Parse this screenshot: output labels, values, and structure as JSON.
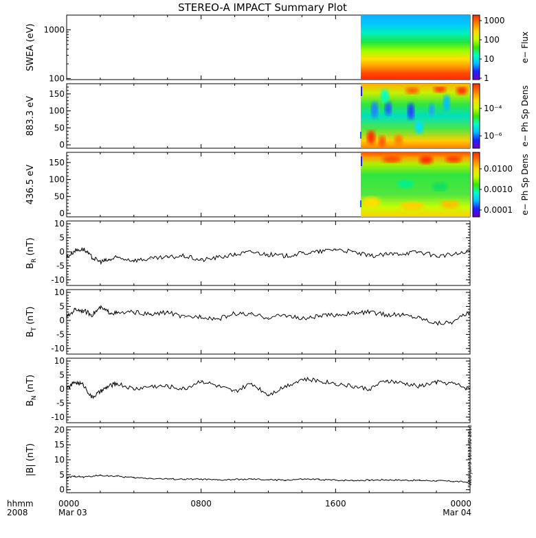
{
  "title": "STEREO-A IMPACT Summary Plot",
  "time_axis": {
    "row_label_top": "hhmm",
    "row_label_bottom": "2008",
    "ticks": [
      {
        "hour": 0,
        "top": "0000",
        "bottom": "Mar 03"
      },
      {
        "hour": 8,
        "top": "0800",
        "bottom": ""
      },
      {
        "hour": 16,
        "top": "1600",
        "bottom": ""
      },
      {
        "hour": 24,
        "top": "0000",
        "bottom": "Mar 04"
      }
    ]
  },
  "timestamp_text": "Wed Jun  9 16:33:31 2010",
  "colorbars": [
    {
      "label": "e− Flux",
      "scale": "log",
      "range": [
        1,
        1000
      ],
      "ticks": [
        "1000",
        "100",
        "10",
        "1"
      ]
    },
    {
      "label": "e− Ph Sp Dens",
      "scale": "log",
      "ticks": [
        "10⁻⁴",
        "10⁻⁶"
      ]
    },
    {
      "label": "e− Ph Sp Dens",
      "scale": "log",
      "range": [
        0.0001,
        0.03
      ],
      "ticks": [
        "0.0100",
        "0.0010",
        "0.0001"
      ]
    }
  ],
  "colormap": [
    "#6a00c8",
    "#1f1fff",
    "#00bfff",
    "#00ffc8",
    "#3ce600",
    "#c8ff00",
    "#ffd700",
    "#ff7f00",
    "#ff2a00"
  ],
  "chart_data": [
    {
      "type": "heatmap",
      "panel": "swea",
      "ylabel": "SWEA (eV)",
      "yscale": "log",
      "ylim": [
        95,
        2000
      ],
      "yticks": [
        "1000",
        "100"
      ],
      "xlim": [
        0,
        24
      ],
      "data_start_hour": 17.5,
      "energy_rows_ev": [
        100,
        150,
        250,
        400,
        650,
        1000,
        1500,
        2000
      ],
      "flux_by_energy": [
        1000,
        400,
        120,
        40,
        15,
        6,
        3,
        2
      ]
    },
    {
      "type": "heatmap",
      "panel": "pad_883",
      "ylabel": "883.3 eV",
      "ylim": [
        -10,
        180
      ],
      "yticks": [
        "150",
        "100",
        "50",
        "0"
      ],
      "xlim": [
        0,
        24
      ],
      "data_start_hour": 17.5
    },
    {
      "type": "heatmap",
      "panel": "pad_436",
      "ylabel": "436.5 eV",
      "ylim": [
        -10,
        180
      ],
      "yticks": [
        "150",
        "100",
        "50",
        "0"
      ],
      "xlim": [
        0,
        24
      ],
      "data_start_hour": 17.5
    },
    {
      "type": "line",
      "panel": "br",
      "ylabel": "B",
      "ylabel_sub": "R",
      "ylabel_unit": " (nT)",
      "ylim": [
        -12,
        11
      ],
      "yticks": [
        "10",
        "5",
        "0",
        "-5",
        "-10"
      ],
      "x": [
        0,
        0.5,
        1,
        1.5,
        2,
        2.5,
        3,
        4,
        5,
        6,
        7,
        8,
        9,
        10,
        11,
        12,
        13,
        14,
        15,
        16,
        17,
        18,
        19,
        20,
        21,
        22,
        23,
        24
      ],
      "y": [
        -2,
        0.5,
        1,
        -2,
        -3.5,
        -3,
        -2,
        -3,
        -2.5,
        -2,
        -1.5,
        -3,
        -2,
        -1,
        0,
        -1,
        -1.5,
        -0.5,
        0,
        1,
        0,
        -1.5,
        -1,
        -0.5,
        0,
        -1.5,
        -1,
        0
      ]
    },
    {
      "type": "line",
      "panel": "bt",
      "ylabel": "B",
      "ylabel_sub": "T",
      "ylabel_unit": " (nT)",
      "ylim": [
        -12,
        11
      ],
      "yticks": [
        "10",
        "5",
        "0",
        "-5",
        "-10"
      ],
      "x": [
        0,
        0.5,
        1,
        1.5,
        2,
        2.5,
        3,
        4,
        5,
        6,
        7,
        8,
        9,
        10,
        11,
        12,
        13,
        14,
        15,
        16,
        17,
        18,
        19,
        20,
        21,
        22,
        23,
        24
      ],
      "y": [
        1,
        4,
        3.5,
        2,
        4.5,
        3,
        2.5,
        3,
        2,
        3,
        1,
        1.5,
        0.5,
        2.5,
        2,
        1,
        2,
        0.5,
        1.5,
        2,
        2.5,
        3,
        2,
        2,
        1,
        -1,
        -0.5,
        3
      ]
    },
    {
      "type": "line",
      "panel": "bn",
      "ylabel": "B",
      "ylabel_sub": "N",
      "ylabel_unit": " (nT)",
      "ylim": [
        -12,
        11
      ],
      "yticks": [
        "10",
        "5",
        "0",
        "-5",
        "-10"
      ],
      "x": [
        0,
        0.5,
        1,
        1.5,
        2,
        2.5,
        3,
        4,
        5,
        6,
        7,
        8,
        9,
        10,
        11,
        12,
        13,
        14,
        15,
        16,
        17,
        18,
        19,
        20,
        21,
        22,
        23,
        24
      ],
      "y": [
        0,
        2.5,
        1.5,
        -3,
        -1,
        1,
        2,
        0,
        1,
        1,
        0,
        3,
        1,
        -1,
        2,
        -2,
        1,
        3.5,
        3,
        2,
        1,
        0,
        3,
        2,
        1,
        2.5,
        2,
        0
      ]
    },
    {
      "type": "line",
      "panel": "bmag",
      "ylabel": "|B| (nT)",
      "ylim": [
        -1,
        21
      ],
      "yticks": [
        "20",
        "15",
        "10",
        "5",
        "0"
      ],
      "x": [
        0,
        0.5,
        1,
        2,
        3,
        4,
        5,
        6,
        7,
        8,
        9,
        10,
        11,
        12,
        13,
        14,
        15,
        16,
        17,
        18,
        19,
        20,
        21,
        22,
        23,
        24
      ],
      "y": [
        4,
        4.5,
        4.2,
        4.8,
        4.5,
        4,
        3.8,
        3.6,
        3.5,
        3.5,
        3.2,
        3.4,
        3.5,
        3.3,
        3.2,
        3.5,
        3.4,
        3.2,
        3.1,
        3.2,
        3.3,
        3.2,
        3.1,
        3,
        2.8,
        2.5
      ]
    }
  ]
}
